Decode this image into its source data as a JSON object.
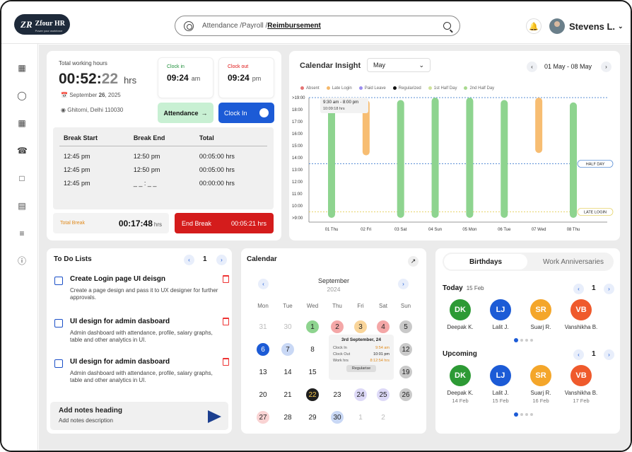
{
  "header": {
    "logo": {
      "mark": "ZR",
      "name": "Zfour HR",
      "tagline": "Power your workforce"
    },
    "breadcrumb": {
      "part1": "Attendance /",
      "part2": "Payroll /",
      "current": "Reimbursement"
    },
    "user_name": "Stevens L."
  },
  "sidebar": {
    "icons": [
      "dashboard-icon",
      "user-circle-icon",
      "calendar-icon",
      "hand-coin-icon",
      "save-icon",
      "document-icon",
      "list-check-icon",
      "info-icon"
    ]
  },
  "time_card": {
    "label": "Total working hours",
    "timer_main": "00:52:",
    "timer_sec": "22",
    "timer_unit": "hrs",
    "date_prefix": "September",
    "date_day": "26",
    "date_year": ", 2025",
    "location": "Ghitorni, Delhi 110030",
    "clock_in_label": "Clock in",
    "clock_in_time": "09:24",
    "clock_in_ampm": "am",
    "clock_out_label": "Clock out",
    "clock_out_time": "09:24",
    "clock_out_ampm": "pm",
    "attendance_button": "Attendance",
    "clock_in_button": "Clock In",
    "break_table": {
      "headers": [
        "Break Start",
        "Break End",
        "Total"
      ],
      "rows": [
        [
          "12:45 pm",
          "12:50 pm",
          "00:05:00 hrs"
        ],
        [
          "12:45 pm",
          "12:50 pm",
          "00:05:00 hrs"
        ],
        [
          "12:45 pm",
          "_ _ : _ _",
          "00:00:00 hrs"
        ]
      ]
    },
    "total_break_label": "Total Break",
    "total_break_value": "00:17:48",
    "total_break_unit": "hrs",
    "end_break_button": "End Break",
    "end_break_timer": "00:05:21 hrs"
  },
  "calendar_insight": {
    "title": "Calendar Insight",
    "month_select": "May",
    "range": "01 May - 08 May",
    "legend": [
      {
        "label": "Absent",
        "color": "#e57373"
      },
      {
        "label": "Late Login",
        "color": "#f5b86a"
      },
      {
        "label": "Paid Leave",
        "color": "#9b8df0"
      },
      {
        "label": "Regularized",
        "color": "#111111"
      },
      {
        "label": "1st Half Day",
        "color": "#cfe39a"
      },
      {
        "label": "2nd Half Day",
        "color": "#a8d98f"
      }
    ],
    "tooltip": {
      "range": "9:30 am - 8:00 pm",
      "hours": "10:09:18 hrs"
    },
    "markers": {
      "half_day": "HALF DAY",
      "late_login": "LATE LOGIN"
    }
  },
  "chart_data": {
    "type": "bar",
    "title": "Calendar Insight",
    "y_tick_labels": [
      ">19:00",
      "18:00",
      "17:00",
      "16:00",
      "15:00",
      "14:00",
      "13:00",
      "12:00",
      "11:00",
      "10:00",
      ">9:00"
    ],
    "categories": [
      "01 Thu",
      "02 Fri",
      "03 Sat",
      "04 Sun",
      "05 Mon",
      "06 Tue",
      "07 Wed",
      "08 Thu"
    ],
    "series": [
      {
        "values": [
          {
            "start": 9.0,
            "end": 18.6,
            "status": "present",
            "color": "#8ed48f"
          },
          {
            "start": 14.2,
            "end": 18.8,
            "status": "late",
            "color": "#f7bd72"
          },
          {
            "start": 9.0,
            "end": 18.8,
            "status": "present",
            "color": "#8ed48f"
          },
          {
            "start": 9.0,
            "end": 19.0,
            "status": "present",
            "color": "#8ed48f"
          },
          {
            "start": 9.0,
            "end": 19.0,
            "status": "present",
            "color": "#8ed48f"
          },
          {
            "start": 9.0,
            "end": 18.8,
            "status": "present",
            "color": "#8ed48f"
          },
          {
            "start": 14.4,
            "end": 19.0,
            "status": "late",
            "color": "#f7bd72"
          },
          {
            "start": 9.0,
            "end": 18.6,
            "status": "present",
            "color": "#8ed48f"
          }
        ]
      }
    ],
    "reference_lines": [
      {
        "label": "HALF DAY",
        "y": 13.5
      },
      {
        "label": "LATE LOGIN",
        "y": 9.5
      },
      {
        "label": "",
        "y": 19.0
      }
    ],
    "ylim": [
      9,
      19
    ]
  },
  "todo": {
    "title": "To Do Lists",
    "page": "1",
    "items": [
      {
        "title": "Create Login page UI deisgn",
        "desc": "Create a page design and pass it to UX designer for further approvals."
      },
      {
        "title": "UI design for admin dasboard",
        "desc": "Admin dashboard with attendance, profile, salary graphs, table and other analytics in UI."
      },
      {
        "title": "UI design for admin dasboard",
        "desc": "Admin dashboard with attendance, profile, salary graphs, table and other analytics in UI."
      }
    ],
    "notes_heading": "Add notes heading",
    "notes_desc": "Add notes description"
  },
  "calendar": {
    "title": "Calendar",
    "month": "September",
    "year": "2024",
    "dow": [
      "Mon",
      "Tue",
      "Wed",
      "Thu",
      "Fri",
      "Sat",
      "Sun"
    ],
    "popup": {
      "date": "3rd September, 24",
      "rows": [
        [
          "Clock In",
          "9:54 am"
        ],
        [
          "Clock Out",
          "10:01 pm"
        ],
        [
          "Work hrs",
          "8:12:54 hrs"
        ]
      ],
      "button": "Regularise"
    }
  },
  "birthdays": {
    "tab_active": "Birthdays",
    "tab_other": "Work Anniversaries",
    "today_label": "Today",
    "today_date": "15 Feb",
    "upcoming_label": "Upcoming",
    "page": "1",
    "today": [
      {
        "initials": "DK",
        "name": "Deepak K.",
        "color": "#2d9a35"
      },
      {
        "initials": "LJ",
        "name": "Lalit J.",
        "color": "#1c5bd6"
      },
      {
        "initials": "SR",
        "name": "Suarj R.",
        "color": "#f4a62a"
      },
      {
        "initials": "VB",
        "name": "Vanshikha B.",
        "color": "#ef5a2c"
      }
    ],
    "upcoming": [
      {
        "initials": "DK",
        "name": "Deepak K.",
        "date": "14 Feb",
        "color": "#2d9a35"
      },
      {
        "initials": "LJ",
        "name": "Lalit J.",
        "date": "15 Feb",
        "color": "#1c5bd6"
      },
      {
        "initials": "SR",
        "name": "Suarj R.",
        "date": "16 Feb",
        "color": "#f4a62a"
      },
      {
        "initials": "VB",
        "name": "Vanshikha B.",
        "date": "17 Feb",
        "color": "#ef5a2c"
      }
    ]
  }
}
